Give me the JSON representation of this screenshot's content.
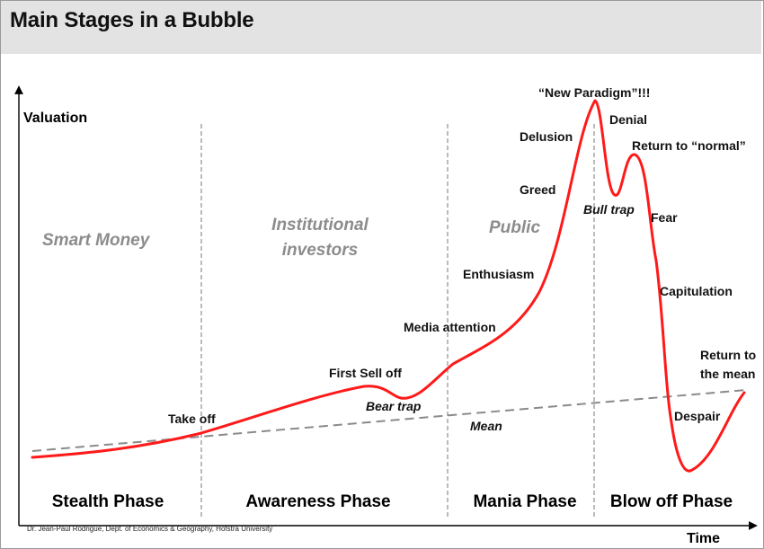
{
  "title": "Main Stages in a Bubble",
  "axes": {
    "y_label": "Valuation",
    "x_label": "Time"
  },
  "participants": {
    "smart_money": "Smart Money",
    "institutional_line1": "Institutional",
    "institutional_line2": "investors",
    "public": "Public"
  },
  "phases": [
    "Stealth Phase",
    "Awareness Phase",
    "Mania Phase",
    "Blow off Phase"
  ],
  "annotations": {
    "take_off": "Take off",
    "first_sell_off": "First Sell off",
    "bear_trap": "Bear trap",
    "media_attention": "Media attention",
    "enthusiasm": "Enthusiasm",
    "greed": "Greed",
    "delusion": "Delusion",
    "new_paradigm": "“New Paradigm”!!!",
    "denial": "Denial",
    "return_to_normal": "Return to “normal”",
    "bull_trap": "Bull trap",
    "fear": "Fear",
    "capitulation": "Capitulation",
    "despair": "Despair",
    "return_to_mean_line1": "Return to",
    "return_to_mean_line2": "the mean",
    "mean": "Mean"
  },
  "colors": {
    "curve": "#ff1a1a",
    "mean_line": "#8a8a8a",
    "header_bg": "#e3e3e3"
  },
  "credit": "Dr. Jean-Paul Rodrigue, Dept. of Economics & Geography, Hofstra University"
}
